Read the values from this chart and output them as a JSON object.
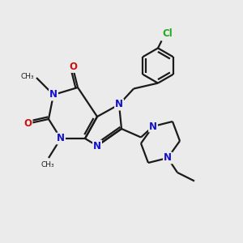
{
  "bg_color": "#ebebeb",
  "bond_color": "#1a1a1a",
  "N_color": "#1111cc",
  "O_color": "#cc1111",
  "Cl_color": "#22aa22",
  "line_width": 1.6,
  "figsize": [
    3.0,
    3.0
  ],
  "dpi": 100,
  "xlim": [
    0,
    10
  ],
  "ylim": [
    0,
    10
  ]
}
